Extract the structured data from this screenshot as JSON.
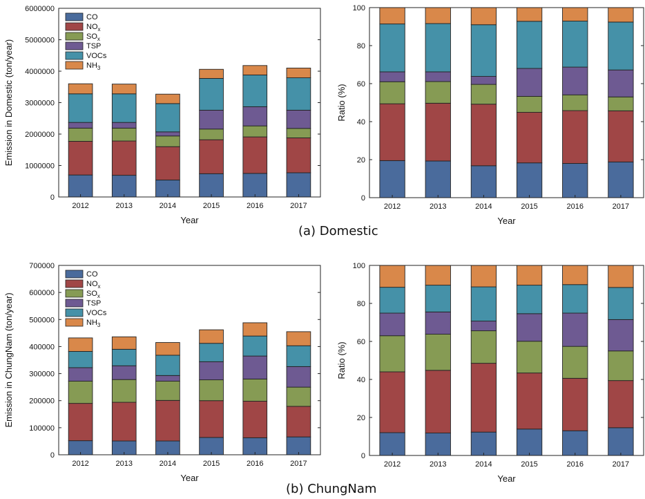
{
  "captions": {
    "a": "(a) Domestic",
    "b": "(b) ChungNam"
  },
  "colors": {
    "CO": "#4A6B9C",
    "NOx": "#A04646",
    "SOx": "#869B54",
    "TSP": "#6E5A92",
    "VOCs": "#4591A8",
    "NH3": "#D9884A"
  },
  "legend_entries": [
    {
      "key": "CO",
      "label": "CO",
      "sub": ""
    },
    {
      "key": "NOx",
      "label": "NO",
      "sub": "x"
    },
    {
      "key": "SOx",
      "label": "SO",
      "sub": "x"
    },
    {
      "key": "TSP",
      "label": "TSP",
      "sub": ""
    },
    {
      "key": "VOCs",
      "label": "VOCs",
      "sub": ""
    },
    {
      "key": "NH3",
      "label": "NH",
      "sub": "3"
    }
  ],
  "chart_data": [
    {
      "id": "domestic-emission",
      "type": "bar",
      "stacked": true,
      "title": "",
      "xlabel": "Year",
      "ylabel": "Emission in Domestic (ton/year)",
      "categories": [
        "2012",
        "2013",
        "2014",
        "2015",
        "2016",
        "2017"
      ],
      "ylim": [
        0,
        6000000
      ],
      "yticks": [
        0,
        1000000,
        2000000,
        3000000,
        4000000,
        5000000,
        6000000
      ],
      "legend": "top-left",
      "series": [
        {
          "name": "CO",
          "values": [
            700000,
            690000,
            540000,
            740000,
            750000,
            770000
          ]
        },
        {
          "name": "NOx",
          "values": [
            1070000,
            1090000,
            1060000,
            1080000,
            1160000,
            1110000
          ]
        },
        {
          "name": "SOx",
          "values": [
            420000,
            410000,
            340000,
            340000,
            350000,
            300000
          ]
        },
        {
          "name": "TSP",
          "values": [
            180000,
            180000,
            130000,
            600000,
            610000,
            580000
          ]
        },
        {
          "name": "VOCs",
          "values": [
            910000,
            910000,
            900000,
            1010000,
            1010000,
            1030000
          ]
        },
        {
          "name": "NH3",
          "values": [
            320000,
            310000,
            300000,
            290000,
            300000,
            310000
          ]
        }
      ]
    },
    {
      "id": "domestic-ratio",
      "type": "bar",
      "stacked": true,
      "title": "",
      "xlabel": "Year",
      "ylabel": "Ratio (%)",
      "categories": [
        "2012",
        "2013",
        "2014",
        "2015",
        "2016",
        "2017"
      ],
      "ylim": [
        0,
        100
      ],
      "yticks": [
        0,
        20,
        40,
        60,
        80,
        100
      ],
      "series": [
        {
          "name": "CO",
          "values": [
            19.5,
            19.3,
            16.8,
            18.3,
            18.0,
            18.8
          ]
        },
        {
          "name": "NOx",
          "values": [
            29.9,
            30.4,
            32.4,
            26.6,
            27.8,
            26.9
          ]
        },
        {
          "name": "SOx",
          "values": [
            11.6,
            11.4,
            10.4,
            8.4,
            8.3,
            7.3
          ]
        },
        {
          "name": "TSP",
          "values": [
            5.2,
            5.1,
            4.2,
            14.7,
            14.6,
            14.2
          ]
        },
        {
          "name": "VOCs",
          "values": [
            25.2,
            25.4,
            27.2,
            24.8,
            24.2,
            25.2
          ]
        },
        {
          "name": "NH3",
          "values": [
            8.6,
            8.4,
            9.0,
            7.2,
            7.1,
            7.6
          ]
        }
      ]
    },
    {
      "id": "chungnam-emission",
      "type": "bar",
      "stacked": true,
      "title": "",
      "xlabel": "Year",
      "ylabel": "Emission in ChungNam (ton/year)",
      "categories": [
        "2012",
        "2013",
        "2014",
        "2015",
        "2016",
        "2017"
      ],
      "ylim": [
        0,
        700000
      ],
      "yticks": [
        0,
        100000,
        200000,
        300000,
        400000,
        500000,
        600000,
        700000
      ],
      "legend": "top-left",
      "series": [
        {
          "name": "CO",
          "values": [
            52000,
            51000,
            51000,
            64000,
            63000,
            66000
          ]
        },
        {
          "name": "NOx",
          "values": [
            138000,
            143000,
            150000,
            136000,
            135000,
            113000
          ]
        },
        {
          "name": "SOx",
          "values": [
            82000,
            84000,
            71000,
            77000,
            82000,
            71000
          ]
        },
        {
          "name": "TSP",
          "values": [
            50000,
            51000,
            21000,
            67000,
            85000,
            76000
          ]
        },
        {
          "name": "VOCs",
          "values": [
            60000,
            61000,
            75000,
            68000,
            74000,
            77000
          ]
        },
        {
          "name": "NH3",
          "values": [
            50000,
            46000,
            47000,
            50000,
            49000,
            52000
          ]
        }
      ]
    },
    {
      "id": "chungnam-ratio",
      "type": "bar",
      "stacked": true,
      "title": "",
      "xlabel": "Year",
      "ylabel": "Ratio (%)",
      "categories": [
        "2012",
        "2013",
        "2014",
        "2015",
        "2016",
        "2017"
      ],
      "ylim": [
        0,
        100
      ],
      "yticks": [
        0,
        20,
        40,
        60,
        80,
        100
      ],
      "series": [
        {
          "name": "CO",
          "values": [
            12.0,
            11.8,
            12.3,
            13.9,
            13.0,
            14.6
          ]
        },
        {
          "name": "NOx",
          "values": [
            32.0,
            33.0,
            36.2,
            29.5,
            27.6,
            24.8
          ]
        },
        {
          "name": "SOx",
          "values": [
            19.0,
            19.0,
            17.1,
            16.7,
            16.8,
            15.6
          ]
        },
        {
          "name": "TSP",
          "values": [
            11.9,
            11.7,
            5.1,
            14.5,
            17.5,
            16.5
          ]
        },
        {
          "name": "VOCs",
          "values": [
            13.6,
            14.1,
            18.0,
            15.0,
            15.0,
            16.9
          ]
        },
        {
          "name": "NH3",
          "values": [
            11.5,
            10.4,
            11.3,
            10.4,
            10.1,
            11.6
          ]
        }
      ]
    }
  ]
}
